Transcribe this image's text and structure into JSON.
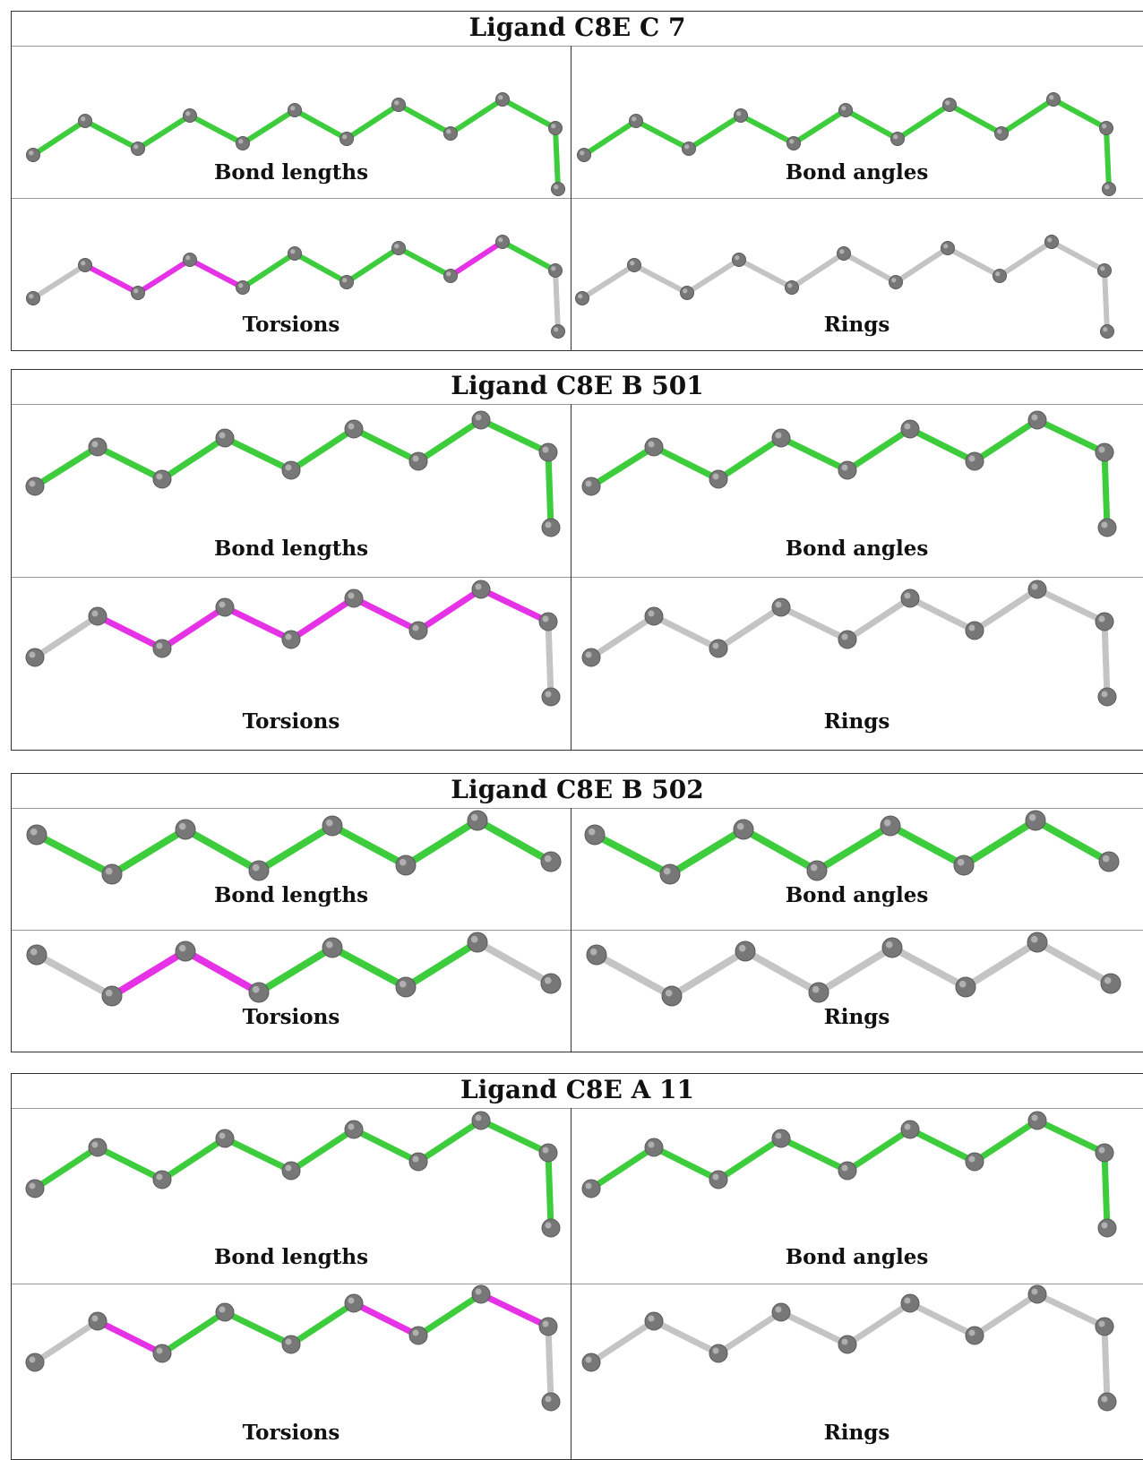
{
  "colors": {
    "pass_bond": "#3ccc3c",
    "outlier_bond": "#e632e6",
    "neutral_bond": "#c4c4c4",
    "atom": "#777777"
  },
  "ligands": [
    {
      "title": "Ligand C8E C 7",
      "panels": [
        {
          "label": "Bond lengths",
          "bond_colors": [
            "pass",
            "pass",
            "pass",
            "pass",
            "pass",
            "pass",
            "pass",
            "pass",
            "pass",
            "pass",
            "pass"
          ]
        },
        {
          "label": "Bond angles",
          "bond_colors": [
            "pass",
            "pass",
            "pass",
            "pass",
            "pass",
            "pass",
            "pass",
            "pass",
            "pass",
            "pass",
            "pass"
          ]
        },
        {
          "label": "Torsions",
          "bond_colors": [
            "neutral",
            "outlier",
            "outlier",
            "outlier",
            "pass",
            "pass",
            "pass",
            "pass",
            "outlier",
            "pass",
            "neutral"
          ]
        },
        {
          "label": "Rings",
          "bond_colors": [
            "neutral",
            "neutral",
            "neutral",
            "neutral",
            "neutral",
            "neutral",
            "neutral",
            "neutral",
            "neutral",
            "neutral",
            "neutral"
          ]
        }
      ]
    },
    {
      "title": "Ligand C8E B 501",
      "panels": [
        {
          "label": "Bond lengths",
          "bond_colors": [
            "pass",
            "pass",
            "pass",
            "pass",
            "pass",
            "pass",
            "pass",
            "pass",
            "pass"
          ]
        },
        {
          "label": "Bond angles",
          "bond_colors": [
            "pass",
            "pass",
            "pass",
            "pass",
            "pass",
            "pass",
            "pass",
            "pass",
            "pass"
          ]
        },
        {
          "label": "Torsions",
          "bond_colors": [
            "neutral",
            "outlier",
            "outlier",
            "outlier",
            "outlier",
            "outlier",
            "outlier",
            "outlier",
            "neutral"
          ]
        },
        {
          "label": "Rings",
          "bond_colors": [
            "neutral",
            "neutral",
            "neutral",
            "neutral",
            "neutral",
            "neutral",
            "neutral",
            "neutral",
            "neutral"
          ]
        }
      ]
    },
    {
      "title": "Ligand C8E B 502",
      "panels": [
        {
          "label": "Bond lengths",
          "bond_colors": [
            "pass",
            "pass",
            "pass",
            "pass",
            "pass",
            "pass",
            "pass"
          ]
        },
        {
          "label": "Bond angles",
          "bond_colors": [
            "pass",
            "pass",
            "pass",
            "pass",
            "pass",
            "pass",
            "pass"
          ]
        },
        {
          "label": "Torsions",
          "bond_colors": [
            "neutral",
            "outlier",
            "outlier",
            "pass",
            "pass",
            "pass",
            "neutral"
          ]
        },
        {
          "label": "Rings",
          "bond_colors": [
            "neutral",
            "neutral",
            "neutral",
            "neutral",
            "neutral",
            "neutral",
            "neutral"
          ]
        }
      ]
    },
    {
      "title": "Ligand C8E A 11",
      "panels": [
        {
          "label": "Bond lengths",
          "bond_colors": [
            "pass",
            "pass",
            "pass",
            "pass",
            "pass",
            "pass",
            "pass",
            "pass",
            "pass"
          ]
        },
        {
          "label": "Bond angles",
          "bond_colors": [
            "pass",
            "pass",
            "pass",
            "pass",
            "pass",
            "pass",
            "pass",
            "pass",
            "pass"
          ]
        },
        {
          "label": "Torsions",
          "bond_colors": [
            "neutral",
            "outlier",
            "pass",
            "pass",
            "pass",
            "outlier",
            "pass",
            "outlier",
            "neutral"
          ]
        },
        {
          "label": "Rings",
          "bond_colors": [
            "neutral",
            "neutral",
            "neutral",
            "neutral",
            "neutral",
            "neutral",
            "neutral",
            "neutral",
            "neutral"
          ]
        }
      ]
    }
  ]
}
